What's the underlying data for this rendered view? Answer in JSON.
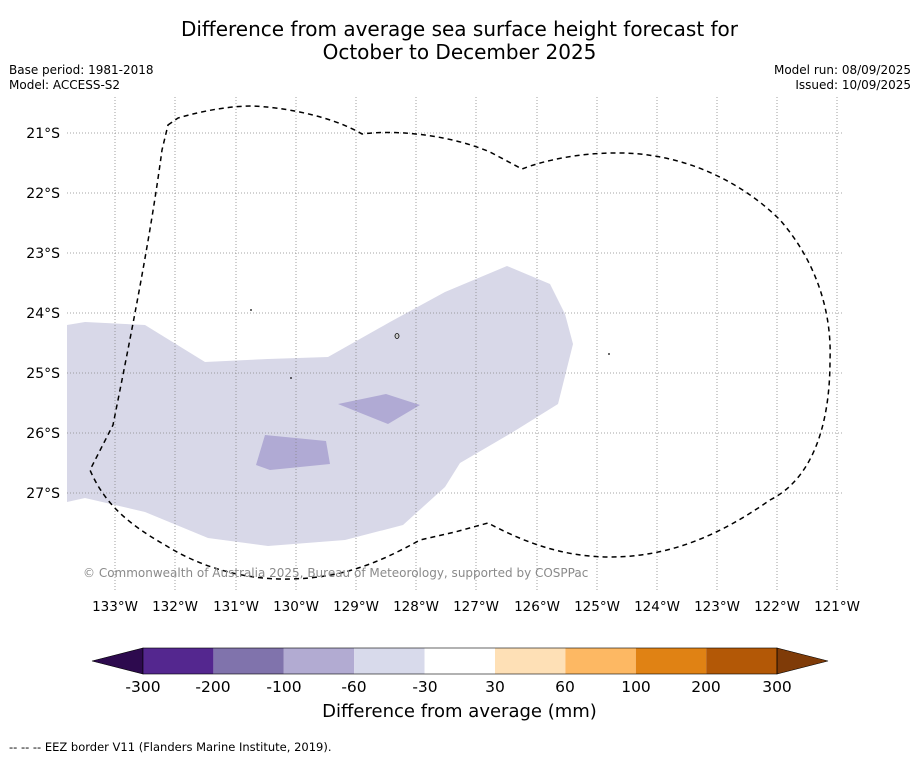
{
  "title": {
    "line1": "Difference from average sea surface height forecast for",
    "line2": "October to December 2025"
  },
  "meta_left": {
    "base_period": "Base period: 1981-2018",
    "model": "Model: ACCESS-S2"
  },
  "meta_right": {
    "model_run": "Model run: 08/09/2025",
    "issued": "Issued: 10/09/2025"
  },
  "map": {
    "lat_labels": [
      "21°S",
      "22°S",
      "23°S",
      "24°S",
      "25°S",
      "26°S",
      "27°S"
    ],
    "lon_labels": [
      "133°W",
      "132°W",
      "131°W",
      "130°W",
      "129°W",
      "128°W",
      "127°W",
      "126°W",
      "125°W",
      "124°W",
      "123°W",
      "122°W",
      "121°W"
    ],
    "copyright": "© Commonwealth of Australia 2025, Bureau of Meteorology, supported by COSPPac",
    "anomaly_band_mm": "-60 to -30",
    "anomaly_patches_mm": "-100 to -60"
  },
  "colorbar": {
    "tick_labels": [
      "-300",
      "-200",
      "-100",
      "-60",
      "-30",
      "30",
      "60",
      "100",
      "200",
      "300"
    ],
    "label": "Difference from average (mm)",
    "colors": {
      "under": "#2d0a4e",
      "bins": [
        "#54278f",
        "#8073ac",
        "#b2abd2",
        "#d8daeb",
        "#ffffff",
        "#fee0b6",
        "#fdb863",
        "#e08214",
        "#b35806"
      ],
      "over": "#7f3b08"
    }
  },
  "footer": "--  --  -- EEZ border V11 (Flanders Marine Institute, 2019)."
}
